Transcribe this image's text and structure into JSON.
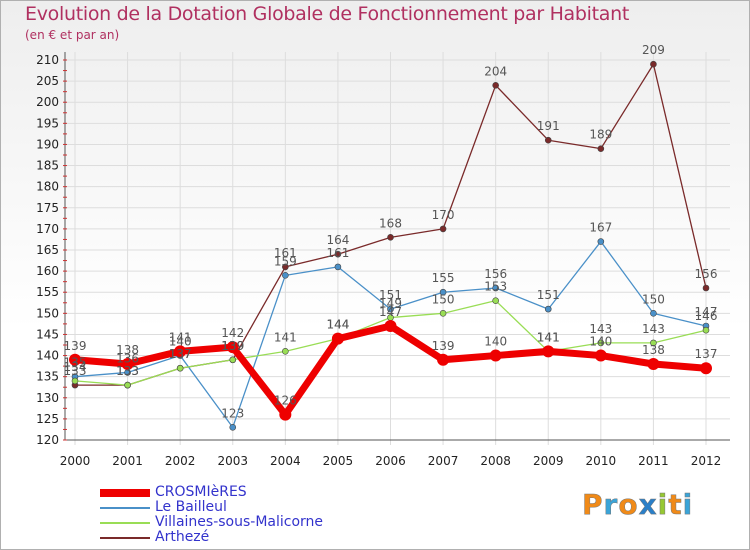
{
  "header": {
    "title": "Evolution de la Dotation Globale de Fonctionnement par Habitant",
    "subtitle": "(en € et par an)"
  },
  "brand": {
    "text": "Proxiti",
    "colors": [
      "#f08a18",
      "#3aa4d8",
      "#f08a18",
      "#2a7fc8",
      "#96c832",
      "#f08a18",
      "#3aa4d8"
    ]
  },
  "chart_data": {
    "type": "line",
    "title": "Evolution de la Dotation Globale de Fonctionnement par Habitant",
    "subtitle": "(en € et par an)",
    "xlabel": "",
    "ylabel": "",
    "x": [
      "2000",
      "2001",
      "2002",
      "2003",
      "2004",
      "2005",
      "2006",
      "2007",
      "2008",
      "2009",
      "2010",
      "2011",
      "2012"
    ],
    "ylim": [
      120,
      210
    ],
    "yticks": [
      120,
      125,
      130,
      135,
      140,
      145,
      150,
      155,
      160,
      165,
      170,
      175,
      180,
      185,
      190,
      195,
      200,
      205,
      210
    ],
    "grid": true,
    "legend_position": "bottom-left",
    "series": [
      {
        "name": "CROSMIèRES",
        "color": "#ee0000",
        "values": [
          139,
          138,
          141,
          142,
          126,
          144,
          147,
          139,
          140,
          141,
          140,
          138,
          137
        ]
      },
      {
        "name": "Le Bailleul",
        "color": "#4a90c8",
        "values": [
          135,
          136,
          140,
          123,
          159,
          161,
          151,
          155,
          156,
          151,
          167,
          150,
          147
        ]
      },
      {
        "name": "Villaines-sous-Malicorne",
        "color": "#99dd55",
        "values": [
          134,
          133,
          137,
          139,
          141,
          144,
          149,
          150,
          153,
          141,
          143,
          143,
          146
        ]
      },
      {
        "name": "Arthezé",
        "color": "#7a2a2a",
        "values": [
          133,
          133,
          137,
          139,
          161,
          164,
          168,
          170,
          204,
          191,
          189,
          209,
          156
        ]
      }
    ]
  }
}
